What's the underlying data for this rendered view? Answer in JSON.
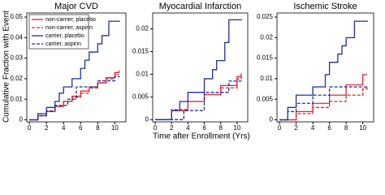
{
  "chart_data": [
    {
      "type": "line",
      "title": "Major CVD",
      "ylabel": "Cumulative Fraction with Event",
      "step": true,
      "legend": "upper left",
      "xlim": [
        -0.3,
        11.3
      ],
      "xticks": [
        0,
        2,
        4,
        6,
        8,
        10
      ],
      "ylim": [
        -0.001,
        0.052
      ],
      "yticks": [
        0,
        0.01,
        0.02,
        0.03,
        0.04,
        0.05
      ],
      "series": [
        {
          "name": "non-carrier, placebo",
          "color": "#e3242b",
          "dash": false,
          "x": [
            0,
            1,
            2,
            3,
            4,
            5,
            6,
            7,
            8,
            9,
            10,
            10.5
          ],
          "values": [
            0,
            0.002,
            0.004,
            0.0065,
            0.009,
            0.0115,
            0.014,
            0.016,
            0.018,
            0.0205,
            0.023,
            0.024
          ]
        },
        {
          "name": "non-carrier, aspirin",
          "color": "#e3242b",
          "dash": true,
          "x": [
            0,
            1,
            2,
            3,
            4,
            5,
            6,
            7,
            8,
            9,
            10,
            10.5
          ],
          "values": [
            0,
            0.002,
            0.0045,
            0.007,
            0.009,
            0.011,
            0.013,
            0.0155,
            0.018,
            0.02,
            0.022,
            0.023
          ]
        },
        {
          "name": "carrier, placebo",
          "color": "#1f2ea3",
          "dash": false,
          "x": [
            0,
            1,
            2,
            3,
            3.5,
            4,
            5,
            6,
            6.5,
            7,
            8,
            8.5,
            9.3,
            10.6
          ],
          "values": [
            0,
            0.003,
            0.006,
            0.009,
            0.013,
            0.016,
            0.02,
            0.025,
            0.029,
            0.033,
            0.037,
            0.041,
            0.048,
            0.048
          ]
        },
        {
          "name": "carrier, aspirin",
          "color": "#1f2ea3",
          "dash": true,
          "x": [
            0,
            1,
            2,
            3,
            4.5,
            5.5,
            8,
            10,
            10.6
          ],
          "values": [
            0,
            0.002,
            0.004,
            0.007,
            0.01,
            0.016,
            0.019,
            0.021,
            0.021
          ]
        }
      ]
    },
    {
      "type": "line",
      "title": "Myocardial Infarction",
      "xlabel": "Time after Enrollment (Yrs)",
      "step": true,
      "xlim": [
        -0.3,
        11.3
      ],
      "xticks": [
        0,
        2,
        4,
        6,
        8,
        10
      ],
      "ylim": [
        -0.0005,
        0.0235
      ],
      "yticks": [
        0,
        0.005,
        0.01,
        0.015,
        0.02
      ],
      "series": [
        {
          "color": "#e3242b",
          "dash": false,
          "x": [
            0,
            2,
            4,
            6,
            8,
            10,
            10.5
          ],
          "values": [
            0,
            0.002,
            0.004,
            0.0055,
            0.0075,
            0.0095,
            0.0102
          ]
        },
        {
          "color": "#e3242b",
          "dash": true,
          "x": [
            0,
            2,
            4,
            6,
            8,
            10,
            10.5
          ],
          "values": [
            0,
            0.0022,
            0.004,
            0.0055,
            0.007,
            0.009,
            0.0097
          ]
        },
        {
          "color": "#1f2ea3",
          "dash": false,
          "x": [
            0,
            2,
            3,
            4,
            6,
            7,
            7.5,
            8.5,
            9,
            10.6
          ],
          "values": [
            0,
            0.002,
            0.004,
            0.006,
            0.009,
            0.011,
            0.013,
            0.017,
            0.022,
            0.022
          ]
        },
        {
          "color": "#1f2ea3",
          "dash": true,
          "x": [
            0,
            3.5,
            6,
            9,
            10.6
          ],
          "values": [
            0,
            0.002,
            0.006,
            0.0085,
            0.0085
          ]
        }
      ]
    },
    {
      "type": "line",
      "title": "Ischemic Stroke",
      "step": true,
      "xlim": [
        -0.3,
        11.3
      ],
      "xticks": [
        0,
        2,
        4,
        6,
        8,
        10
      ],
      "ylim": [
        -0.0005,
        0.026
      ],
      "yticks": [
        0,
        0.005,
        0.01,
        0.015,
        0.02,
        0.025
      ],
      "series": [
        {
          "color": "#e3242b",
          "dash": false,
          "x": [
            0,
            2,
            4,
            6,
            8,
            10,
            10.5
          ],
          "values": [
            0,
            0.002,
            0.004,
            0.006,
            0.0085,
            0.011,
            0.011
          ]
        },
        {
          "color": "#e3242b",
          "dash": true,
          "x": [
            0,
            2,
            4,
            6,
            8,
            10,
            10.5
          ],
          "values": [
            0,
            0.0015,
            0.003,
            0.0045,
            0.006,
            0.0075,
            0.008
          ]
        },
        {
          "color": "#1f2ea3",
          "dash": false,
          "x": [
            0,
            1,
            2,
            4,
            5.5,
            6,
            7,
            7.5,
            8,
            9,
            10.6
          ],
          "values": [
            0,
            0.003,
            0.006,
            0.008,
            0.011,
            0.014,
            0.016,
            0.018,
            0.02,
            0.024,
            0.024
          ]
        },
        {
          "color": "#1f2ea3",
          "dash": true,
          "x": [
            0,
            1,
            2,
            4,
            6,
            10.6
          ],
          "values": [
            0,
            0.002,
            0.004,
            0.006,
            0.008,
            0.008
          ]
        }
      ]
    }
  ]
}
